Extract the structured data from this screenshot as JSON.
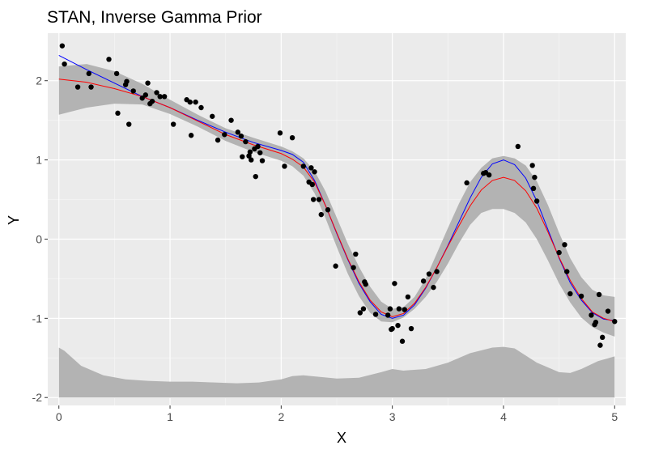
{
  "colors": {
    "panel": "#ebebeb",
    "grid_major": "#ffffff",
    "band": "#b3b3b3",
    "points": "#000000",
    "posterior_mean": "#ff0000",
    "true_function": "#0000ff"
  },
  "chart_data": {
    "type": "scatter",
    "title": "STAN, Inverse Gamma Prior",
    "xlabel": "X",
    "ylabel": "Y",
    "xlim": [
      -0.1,
      5.1
    ],
    "ylim": [
      -2.1,
      2.6
    ],
    "xticks": [
      0,
      1,
      2,
      3,
      4,
      5
    ],
    "xtick_labels": [
      "0",
      "1",
      "2",
      "3",
      "4",
      "5"
    ],
    "yticks": [
      -2,
      -1,
      0,
      1,
      2
    ],
    "ytick_labels": [
      "-2",
      "-1",
      "0",
      "1",
      "2"
    ],
    "grid": true,
    "points": [
      [
        0.03,
        2.44
      ],
      [
        0.05,
        2.21
      ],
      [
        0.17,
        1.92
      ],
      [
        0.27,
        2.09
      ],
      [
        0.29,
        1.92
      ],
      [
        0.45,
        2.27
      ],
      [
        0.52,
        2.09
      ],
      [
        0.53,
        1.59
      ],
      [
        0.6,
        1.95
      ],
      [
        0.61,
        1.99
      ],
      [
        0.63,
        1.45
      ],
      [
        0.67,
        1.87
      ],
      [
        0.75,
        1.78
      ],
      [
        0.78,
        1.82
      ],
      [
        0.8,
        1.97
      ],
      [
        0.82,
        1.71
      ],
      [
        0.84,
        1.74
      ],
      [
        0.88,
        1.85
      ],
      [
        0.91,
        1.8
      ],
      [
        0.95,
        1.8
      ],
      [
        1.03,
        1.45
      ],
      [
        1.15,
        1.76
      ],
      [
        1.18,
        1.73
      ],
      [
        1.19,
        1.31
      ],
      [
        1.23,
        1.73
      ],
      [
        1.28,
        1.66
      ],
      [
        1.38,
        1.55
      ],
      [
        1.43,
        1.25
      ],
      [
        1.49,
        1.32
      ],
      [
        1.55,
        1.5
      ],
      [
        1.61,
        1.35
      ],
      [
        1.64,
        1.3
      ],
      [
        1.65,
        1.04
      ],
      [
        1.68,
        1.23
      ],
      [
        1.71,
        1.05
      ],
      [
        1.72,
        1.1
      ],
      [
        1.73,
        1.0
      ],
      [
        1.76,
        1.14
      ],
      [
        1.77,
        0.79
      ],
      [
        1.79,
        1.17
      ],
      [
        1.81,
        1.09
      ],
      [
        1.83,
        0.99
      ],
      [
        1.99,
        1.34
      ],
      [
        2.03,
        0.92
      ],
      [
        2.1,
        1.28
      ],
      [
        2.2,
        0.92
      ],
      [
        2.25,
        0.72
      ],
      [
        2.27,
        0.9
      ],
      [
        2.28,
        0.69
      ],
      [
        2.29,
        0.5
      ],
      [
        2.3,
        0.85
      ],
      [
        2.34,
        0.5
      ],
      [
        2.36,
        0.31
      ],
      [
        2.42,
        0.37
      ],
      [
        2.49,
        -0.34
      ],
      [
        2.65,
        -0.36
      ],
      [
        2.67,
        -0.19
      ],
      [
        2.71,
        -0.93
      ],
      [
        2.74,
        -0.88
      ],
      [
        2.75,
        -0.54
      ],
      [
        2.76,
        -0.57
      ],
      [
        2.85,
        -0.95
      ],
      [
        2.96,
        -0.96
      ],
      [
        2.98,
        -0.88
      ],
      [
        2.99,
        -1.14
      ],
      [
        3.0,
        -1.13
      ],
      [
        3.02,
        -0.56
      ],
      [
        3.05,
        -1.09
      ],
      [
        3.06,
        -0.88
      ],
      [
        3.09,
        -1.29
      ],
      [
        3.11,
        -0.89
      ],
      [
        3.14,
        -0.73
      ],
      [
        3.17,
        -1.13
      ],
      [
        3.28,
        -0.53
      ],
      [
        3.33,
        -0.44
      ],
      [
        3.37,
        -0.61
      ],
      [
        3.4,
        -0.41
      ],
      [
        3.67,
        0.71
      ],
      [
        3.82,
        0.83
      ],
      [
        3.84,
        0.84
      ],
      [
        3.87,
        0.81
      ],
      [
        4.13,
        1.17
      ],
      [
        4.26,
        0.93
      ],
      [
        4.27,
        0.64
      ],
      [
        4.28,
        0.78
      ],
      [
        4.3,
        0.48
      ],
      [
        4.5,
        -0.17
      ],
      [
        4.55,
        -0.07
      ],
      [
        4.57,
        -0.41
      ],
      [
        4.6,
        -0.69
      ],
      [
        4.7,
        -0.72
      ],
      [
        4.79,
        -0.96
      ],
      [
        4.82,
        -1.08
      ],
      [
        4.83,
        -1.05
      ],
      [
        4.86,
        -0.7
      ],
      [
        4.87,
        -1.34
      ],
      [
        4.89,
        -1.24
      ],
      [
        4.94,
        -0.91
      ],
      [
        5.0,
        -1.04
      ]
    ],
    "lines": [
      {
        "color": "#0000ff",
        "x": [
          0.0,
          0.25,
          0.5,
          0.75,
          1.0,
          1.25,
          1.5,
          1.75,
          2.0,
          2.1,
          2.2,
          2.3,
          2.4,
          2.5,
          2.6,
          2.7,
          2.8,
          2.9,
          3.0,
          3.1,
          3.2,
          3.3,
          3.4,
          3.5,
          3.6,
          3.7,
          3.8,
          3.9,
          4.0,
          4.1,
          4.2,
          4.3,
          4.4,
          4.5,
          4.6,
          4.7,
          4.8,
          4.9,
          5.0
        ],
        "y": [
          2.32,
          2.14,
          1.97,
          1.8,
          1.66,
          1.5,
          1.35,
          1.22,
          1.12,
          1.07,
          0.97,
          0.74,
          0.42,
          0.07,
          -0.26,
          -0.56,
          -0.79,
          -0.95,
          -1.0,
          -0.96,
          -0.83,
          -0.62,
          -0.36,
          -0.08,
          0.22,
          0.52,
          0.78,
          0.95,
          1.0,
          0.94,
          0.77,
          0.48,
          0.12,
          -0.24,
          -0.55,
          -0.77,
          -0.93,
          -1.01,
          -1.03
        ]
      },
      {
        "color": "#ff0000",
        "x": [
          0.0,
          0.25,
          0.5,
          0.75,
          1.0,
          1.25,
          1.5,
          1.75,
          2.0,
          2.1,
          2.2,
          2.3,
          2.4,
          2.5,
          2.6,
          2.7,
          2.8,
          2.9,
          3.0,
          3.1,
          3.2,
          3.3,
          3.4,
          3.5,
          3.6,
          3.7,
          3.8,
          3.9,
          4.0,
          4.1,
          4.2,
          4.3,
          4.4,
          4.5,
          4.6,
          4.7,
          4.8,
          4.9,
          5.0
        ],
        "y": [
          2.02,
          1.98,
          1.9,
          1.8,
          1.66,
          1.49,
          1.32,
          1.19,
          1.08,
          1.01,
          0.91,
          0.72,
          0.42,
          0.08,
          -0.25,
          -0.54,
          -0.77,
          -0.92,
          -0.98,
          -0.94,
          -0.81,
          -0.61,
          -0.36,
          -0.09,
          0.17,
          0.42,
          0.62,
          0.74,
          0.78,
          0.74,
          0.61,
          0.39,
          0.09,
          -0.23,
          -0.52,
          -0.75,
          -0.92,
          -1.0,
          -1.04
        ]
      }
    ],
    "bands": [
      {
        "color": "#b3b3b3",
        "x": [
          0.0,
          0.25,
          0.5,
          0.75,
          1.0,
          1.25,
          1.5,
          1.75,
          2.0,
          2.1,
          2.2,
          2.3,
          2.4,
          2.5,
          2.6,
          2.7,
          2.8,
          2.9,
          3.0,
          3.1,
          3.2,
          3.3,
          3.4,
          3.5,
          3.6,
          3.7,
          3.8,
          3.9,
          4.0,
          4.1,
          4.2,
          4.3,
          4.4,
          4.5,
          4.6,
          4.7,
          4.8,
          4.9,
          5.0
        ],
        "lower": [
          1.57,
          1.66,
          1.71,
          1.7,
          1.58,
          1.42,
          1.24,
          1.1,
          0.99,
          0.92,
          0.8,
          0.58,
          0.26,
          -0.1,
          -0.44,
          -0.72,
          -0.93,
          -1.04,
          -1.05,
          -0.99,
          -0.88,
          -0.73,
          -0.54,
          -0.31,
          -0.05,
          0.18,
          0.33,
          0.38,
          0.38,
          0.33,
          0.21,
          0.0,
          -0.27,
          -0.56,
          -0.8,
          -0.99,
          -1.11,
          -1.18,
          -1.23
        ],
        "upper": [
          2.18,
          2.21,
          2.12,
          1.96,
          1.76,
          1.57,
          1.4,
          1.28,
          1.17,
          1.11,
          1.02,
          0.86,
          0.6,
          0.27,
          -0.06,
          -0.35,
          -0.6,
          -0.79,
          -0.88,
          -0.86,
          -0.73,
          -0.5,
          -0.18,
          0.14,
          0.45,
          0.72,
          0.9,
          1.02,
          1.05,
          1.02,
          0.93,
          0.73,
          0.43,
          0.08,
          -0.24,
          -0.48,
          -0.64,
          -0.71,
          -0.73
        ]
      },
      {
        "color": "#b3b3b3",
        "x": [
          0.0,
          0.05,
          0.2,
          0.4,
          0.6,
          0.8,
          1.0,
          1.2,
          1.4,
          1.6,
          1.8,
          2.0,
          2.1,
          2.2,
          2.35,
          2.5,
          2.7,
          2.9,
          3.0,
          3.1,
          3.3,
          3.5,
          3.7,
          3.9,
          4.0,
          4.1,
          4.3,
          4.5,
          4.6,
          4.7,
          4.85,
          5.0
        ],
        "lower": [
          -2.0,
          -2.0,
          -2.0,
          -2.0,
          -2.0,
          -2.0,
          -2.0,
          -2.0,
          -2.0,
          -2.0,
          -2.0,
          -2.0,
          -2.0,
          -2.0,
          -2.0,
          -2.0,
          -2.0,
          -2.0,
          -2.0,
          -2.0,
          -2.0,
          -2.0,
          -2.0,
          -2.0,
          -2.0,
          -2.0,
          -2.0,
          -2.0,
          -2.0,
          -2.0,
          -2.0,
          -2.0
        ],
        "upper": [
          -1.37,
          -1.41,
          -1.6,
          -1.72,
          -1.77,
          -1.79,
          -1.8,
          -1.8,
          -1.81,
          -1.82,
          -1.81,
          -1.77,
          -1.73,
          -1.72,
          -1.74,
          -1.76,
          -1.75,
          -1.68,
          -1.64,
          -1.66,
          -1.64,
          -1.56,
          -1.44,
          -1.37,
          -1.36,
          -1.38,
          -1.56,
          -1.68,
          -1.69,
          -1.64,
          -1.54,
          -1.48
        ]
      }
    ]
  }
}
